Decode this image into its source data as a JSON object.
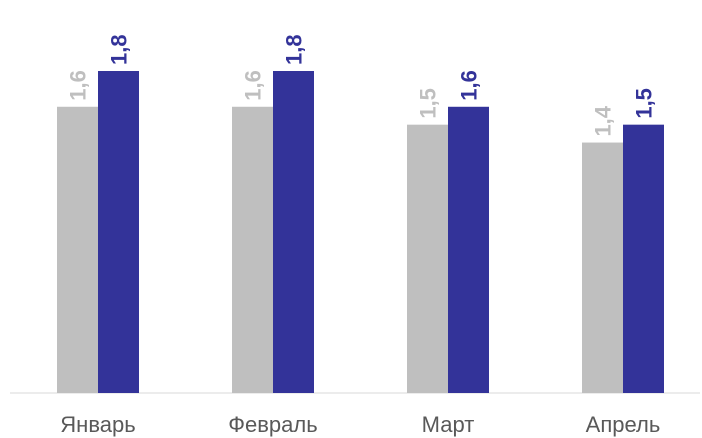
{
  "chart_data": {
    "type": "bar",
    "title": "",
    "xlabel": "",
    "ylabel": "",
    "categories": [
      "Январь",
      "Февраль",
      "Март",
      "Апрель"
    ],
    "value_labels": {
      "s1": [
        "1,6",
        "1,6",
        "1,5",
        "1,4"
      ],
      "s2": [
        "1,8",
        "1,8",
        "1,6",
        "1,5"
      ]
    },
    "series": [
      {
        "values": [
          1.6,
          1.6,
          1.5,
          1.4
        ],
        "color": "#bfbfbf",
        "label_color": "#bfbfbf"
      },
      {
        "values": [
          1.8,
          1.8,
          1.6,
          1.5
        ],
        "color": "#333399",
        "label_color": "#333399"
      }
    ],
    "ylim": [
      0,
      1.8
    ],
    "grid": false,
    "legend": "none",
    "axis_color": "#d9d9d9"
  }
}
